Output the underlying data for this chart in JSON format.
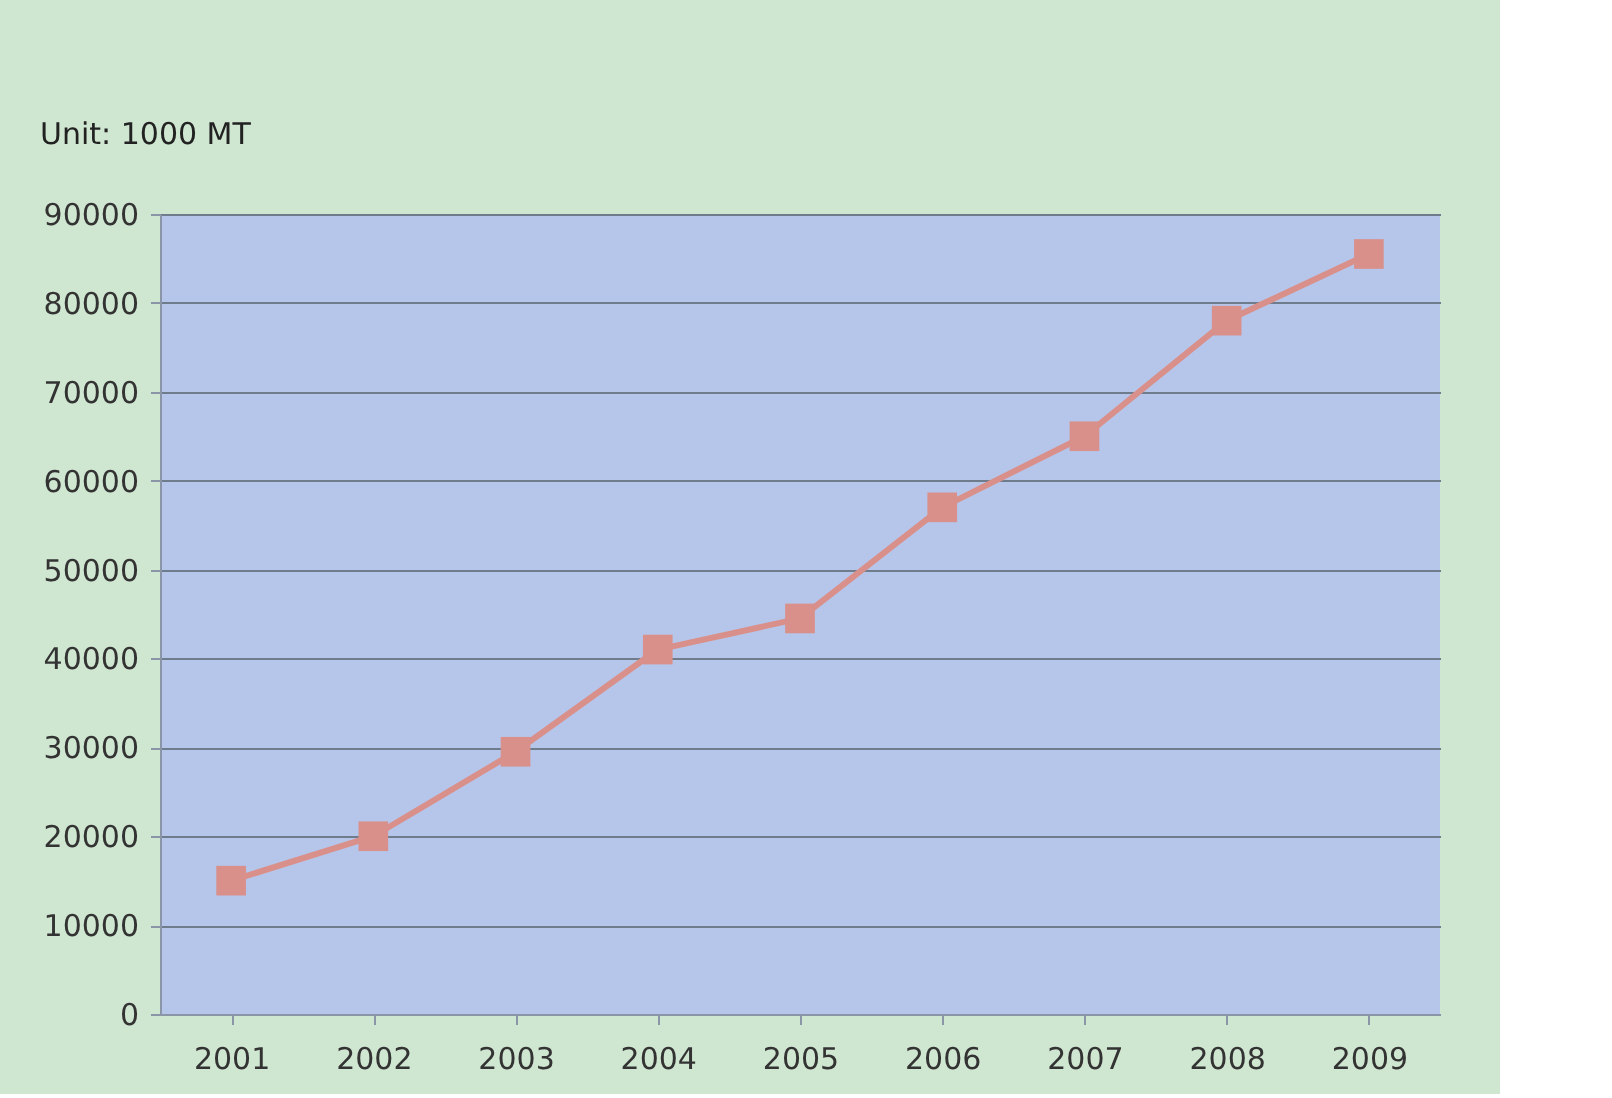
{
  "chart_data": {
    "type": "line",
    "annotations": [
      "Unit: 1000 MT"
    ],
    "categories": [
      "2001",
      "2002",
      "2003",
      "2004",
      "2005",
      "2006",
      "2007",
      "2008",
      "2009"
    ],
    "series": [
      {
        "color": "#d9908a",
        "values": [
          15000,
          20000,
          29500,
          41000,
          44500,
          57000,
          65000,
          78000,
          85500
        ]
      }
    ],
    "ylim": [
      0,
      90000
    ],
    "yticks": [
      0,
      10000,
      20000,
      30000,
      40000,
      50000,
      60000,
      70000,
      80000,
      90000
    ],
    "grid": "y",
    "marker": "square",
    "line_style": "solid"
  }
}
